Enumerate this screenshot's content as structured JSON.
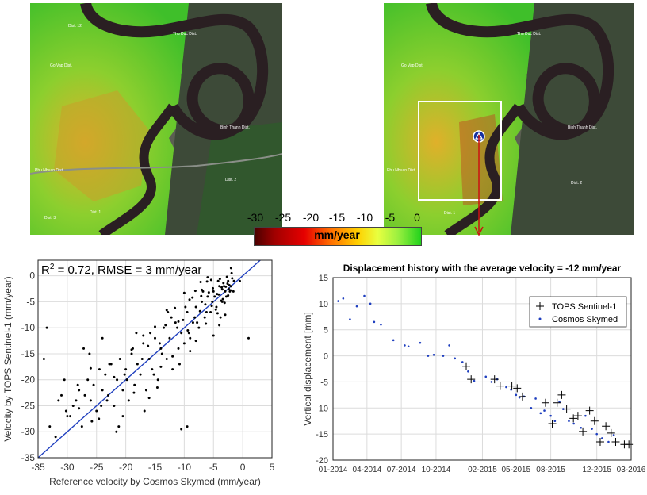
{
  "maps": {
    "left_labels": [
      "Dist. 12",
      "Go Vap Dist.",
      "Thu Duc Dist.",
      "Binh Thanh Dist.",
      "Phu Nhuan Dist.",
      "Dist. 2",
      "Dist. 3",
      "Dist. 1"
    ],
    "right_labels": [
      "Go Vap Dist.",
      "Thu Duc Dist.",
      "Binh Thanh Dist.",
      "Phu Nhuan Dist.",
      "Dist. 2",
      "Dist. 1"
    ]
  },
  "colorbar": {
    "ticks": [
      "-30",
      "-25",
      "-20",
      "-15",
      "-10",
      "-5",
      "0"
    ],
    "unit": "mm/year",
    "colors": [
      "#4a0000",
      "#e60000",
      "#ff6a00",
      "#ffd000",
      "#e8ff40",
      "#22d21c"
    ]
  },
  "chart_data": [
    {
      "type": "scatter",
      "annotation": "R² = 0.72, RMSE = 3 mm/year",
      "xlabel": "Reference velocity by Cosmos Skymed (mm/year)",
      "ylabel": "Velocity by TOPS Sentinel-1 (mm/year)",
      "xlim": [
        -35,
        5
      ],
      "ylim": [
        -35,
        3
      ],
      "xticks": [
        -35,
        -30,
        -25,
        -20,
        -15,
        -10,
        -5,
        0,
        5
      ],
      "yticks": [
        -35,
        -30,
        -25,
        -20,
        -15,
        -10,
        -5,
        0
      ],
      "grid": true,
      "fit_line": {
        "x": [
          -35,
          5
        ],
        "y": [
          -35,
          5
        ],
        "color": "#1f3fbf"
      },
      "points_color": "#000000",
      "x": [
        -33,
        -32,
        -30.5,
        -30,
        -29,
        -28.5,
        -28,
        -27.5,
        -27,
        -26.5,
        -26,
        -25.5,
        -25,
        -24.5,
        -24,
        -23.5,
        -23,
        -22.5,
        -22,
        -21.5,
        -21,
        -20.5,
        -20,
        -19.5,
        -19,
        -18.5,
        -18,
        -17.5,
        -17,
        -16.5,
        -16,
        -15.5,
        -15,
        -14.5,
        -14,
        -13.5,
        -13,
        -12.5,
        -12,
        -11.5,
        -11,
        -10.5,
        -10,
        -9.5,
        -9,
        -8.5,
        -8,
        -7.5,
        -7,
        -6.5,
        -6,
        -5.5,
        -5,
        -4.5,
        -4,
        -3.5,
        -3,
        -2.5,
        -2,
        -1.5,
        -33.5,
        -31,
        -29.5,
        -27.2,
        -25.8,
        -24.2,
        -22.8,
        -21.2,
        -19.8,
        -18.2,
        -16.8,
        -15.2,
        -13.8,
        -12.2,
        -10.8,
        -9.2,
        -7.8,
        -6.2,
        -4.8,
        -3.2,
        -2.2,
        -1.8,
        -2.8,
        -3.8,
        -4.2,
        -5.2,
        -6.8,
        -8.2,
        -9.8,
        -11.2,
        -12.8,
        -14.2,
        -15.8,
        -17.2,
        -18.8,
        -20.2,
        -23.2,
        -26.2,
        -28.2,
        -30.2,
        -2.4,
        -2.6,
        -3.4,
        -3.6,
        -4.4,
        -4.6,
        -5.4,
        -5.8,
        -6.4,
        -7.2,
        -8.6,
        -9.4,
        -10.2,
        -11.6,
        -13.2,
        -14.6,
        -16.2,
        -18.6,
        -21.6,
        -24.6,
        -2.1,
        -2.3,
        -2.5,
        -2.7,
        -2.9,
        -3.1,
        -3.3,
        -3.5,
        -3.7,
        -3.9,
        -4.1,
        -4.3,
        -5.1,
        -5.3,
        -6.1,
        -6.3,
        -7.1,
        -7.3,
        -8.1,
        -9.1,
        -1.6,
        -1.9,
        -2.0,
        -3.0,
        -4.0,
        -5.0,
        -6.0,
        -7.0,
        -8.0,
        -9.0,
        -10.0,
        -11.0,
        -12.0,
        -13.0,
        -14.0,
        -15.0,
        -16.0,
        -17.0,
        -19.0,
        -20.5,
        -22.0,
        -24.0,
        -26.0,
        -28.0,
        -31.5,
        -34.0,
        -10.5,
        -9.5,
        1.0,
        -0.5
      ],
      "y": [
        -29,
        -31,
        -20,
        -27,
        -25,
        -24,
        -22,
        -29,
        -23,
        -20,
        -24,
        -21,
        -26,
        -18,
        -22,
        -19,
        -23,
        -17,
        -25,
        -20,
        -16,
        -22,
        -18,
        -24,
        -15,
        -21,
        -17,
        -19,
        -13,
        -22,
        -16,
        -18,
        -12,
        -20,
        -14,
        -10,
        -16,
        -12,
        -18,
        -9,
        -14,
        -11,
        -13,
        -7,
        -12,
        -9,
        -6,
        -10,
        -5,
        -8,
        -4,
        -7,
        -3,
        -6,
        -2,
        -5,
        -3,
        -1,
        -2,
        -1,
        -10,
        -23,
        -27,
        -14,
        -28,
        -25,
        -17,
        -29,
        -20,
        -11,
        -26,
        -19,
        -15,
        -8,
        -17,
        -11,
        -9,
        -7,
        -4,
        -2,
        -3,
        -0.5,
        -4,
        -8,
        -1,
        -5,
        -3,
        -8,
        -6,
        -10,
        -7,
        -13,
        -11,
        -16,
        -14,
        -19,
        -24,
        -15,
        -21,
        -26,
        -2.5,
        -1.5,
        -4.5,
        -2.2,
        -3.5,
        -6.5,
        -0.8,
        -3.2,
        -5.5,
        -1.2,
        -4.2,
        -10.5,
        -8.5,
        -6.2,
        -9.5,
        -21.5,
        -13.5,
        -22.5,
        -30,
        -27.5,
        -2.8,
        -1.8,
        -3.8,
        -0.2,
        -2.1,
        -5.2,
        -1.4,
        -2.6,
        -4.8,
        -0.6,
        -3.6,
        -7.2,
        -2.4,
        -5.8,
        -1.1,
        -9.2,
        -3.9,
        -6.8,
        -2.9,
        -4.6,
        -3,
        0.5,
        1.5,
        -7.5,
        -9.5,
        -11.5,
        -0.3,
        -2.7,
        -12.5,
        -14.5,
        -3.3,
        -8.8,
        -15.5,
        -6.6,
        -17.5,
        -9.8,
        -23.5,
        -11.5,
        -14.2,
        -27,
        -19.5,
        -12,
        -17.8,
        -25.5,
        -24,
        -16,
        -29.5,
        -29,
        -12,
        -1
      ]
    },
    {
      "type": "scatter",
      "title": "Displacement history with the average velocity = -12 mm/year",
      "xlabel": "",
      "ylabel": "Vertical displacement [mm]",
      "xlim": [
        "2014-01-01",
        "2016-03-01"
      ],
      "ylim": [
        -20,
        15
      ],
      "xticks": [
        "01-2014",
        "04-2014",
        "07-2014",
        "10-2014",
        "02-2015",
        "05-2015",
        "08-2015",
        "12-2015",
        "03-2016"
      ],
      "yticks": [
        15,
        10,
        5,
        0,
        -5,
        -10,
        -15,
        -20
      ],
      "grid": true,
      "legend": "top-right",
      "series": [
        {
          "name": "TOPS Sentinel-1",
          "marker": "plus",
          "color": "#000000",
          "x": [
            "2014-12-20",
            "2015-01-02",
            "2015-03-05",
            "2015-03-20",
            "2015-04-20",
            "2015-05-04",
            "2015-05-18",
            "2015-07-18",
            "2015-08-05",
            "2015-08-18",
            "2015-08-30",
            "2015-09-12",
            "2015-09-30",
            "2015-10-12",
            "2015-10-25",
            "2015-11-12",
            "2015-11-25",
            "2015-12-10",
            "2015-12-25",
            "2016-01-08",
            "2016-01-20",
            "2016-02-12",
            "2016-02-24"
          ],
          "y": [
            -2,
            -4.5,
            -4.5,
            -5.8,
            -5.8,
            -6.2,
            -7.8,
            -9,
            -13,
            -9,
            -7.5,
            -10.2,
            -12,
            -11.5,
            -14.5,
            -10.5,
            -12.5,
            -16.5,
            -13.5,
            -14.8,
            -16.5,
            -17,
            -17
          ]
        },
        {
          "name": "Cosmos Skymed",
          "marker": "dot",
          "color": "#1f3fbf",
          "x": [
            "2014-01-15",
            "2014-01-28",
            "2014-02-15",
            "2014-03-05",
            "2014-03-25",
            "2014-04-10",
            "2014-04-20",
            "2014-05-08",
            "2014-06-10",
            "2014-07-10",
            "2014-07-20",
            "2014-08-20",
            "2014-09-10",
            "2014-09-25",
            "2014-10-20",
            "2014-11-05",
            "2014-11-20",
            "2014-12-10",
            "2014-12-25",
            "2015-01-10",
            "2015-02-10",
            "2015-02-25",
            "2015-03-12",
            "2015-04-05",
            "2015-04-18",
            "2015-05-01",
            "2015-05-10",
            "2015-05-22",
            "2015-06-10",
            "2015-06-22",
            "2015-07-05",
            "2015-07-15",
            "2015-08-01",
            "2015-08-12",
            "2015-08-24",
            "2015-09-03",
            "2015-09-18",
            "2015-10-01",
            "2015-10-20",
            "2015-11-01",
            "2015-11-18",
            "2015-12-01",
            "2015-12-15",
            "2016-01-01",
            "2016-01-15"
          ],
          "y": [
            10.5,
            11,
            7,
            9.5,
            11.5,
            10,
            6.5,
            6,
            3,
            2,
            1.8,
            2.5,
            0,
            0.2,
            0,
            2,
            -0.5,
            -1.2,
            -3,
            -4.8,
            -4,
            -5,
            -4.5,
            -6,
            -6.5,
            -7.5,
            -8,
            -7.8,
            -10,
            -8.2,
            -11,
            -10.5,
            -11.5,
            -12.5,
            -8.8,
            -10.2,
            -12.5,
            -13,
            -13.8,
            -11.5,
            -14,
            -15,
            -15.8,
            -16.5,
            -15.2
          ]
        }
      ]
    }
  ]
}
